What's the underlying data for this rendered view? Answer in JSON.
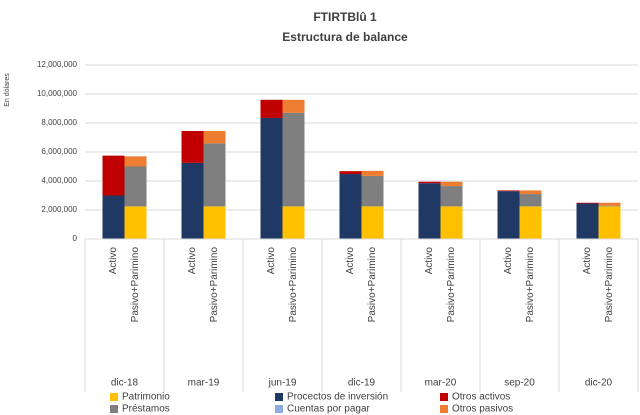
{
  "chart_data": {
    "type": "stacked-bar",
    "title": "FTIRTBlû 1",
    "subtitle": "Estructura de balance",
    "ylabel": "En dólares",
    "categories": [
      "Activo",
      "Pasivo+Parimino",
      "Activo",
      "Pasivo+Parimino",
      "Activo",
      "Pasivo+Parimino",
      "Activo",
      "Pasivo+Parimino",
      "Activo",
      "Pasivo+Parimino",
      "Activo",
      "Pasivo+Parimino",
      "Activo",
      "Pasivo+Parimino"
    ],
    "groups": [
      "dic-18",
      "mar-19",
      "jun-19",
      "dic-19",
      "mar-20",
      "sep-20",
      "dic-20"
    ],
    "series": [
      {
        "name": "Patrimonio",
        "color": "#ffc000",
        "values": [
          null,
          2250000,
          null,
          2250000,
          null,
          2250000,
          null,
          2250000,
          null,
          2250000,
          null,
          2250000,
          null,
          2250000
        ]
      },
      {
        "name": "Procectos de inversión",
        "color": "#203864",
        "values": [
          3000000,
          null,
          5250000,
          null,
          8350000,
          null,
          4480000,
          null,
          3850000,
          null,
          3300000,
          null,
          2450000,
          null
        ]
      },
      {
        "name": "Otros activos",
        "color": "#c00000",
        "values": [
          2750000,
          null,
          2200000,
          null,
          1250000,
          null,
          200000,
          null,
          100000,
          null,
          50000,
          null,
          50000,
          null
        ]
      },
      {
        "name": "Préstamos",
        "color": "#7f7f7f",
        "values": [
          null,
          2750000,
          null,
          4350000,
          null,
          6450000,
          null,
          2100000,
          null,
          1400000,
          null,
          850000,
          null,
          50000
        ]
      },
      {
        "name": "Cuentas por pagar",
        "color": "#8faadc",
        "values": [
          null,
          0,
          null,
          0,
          null,
          0,
          null,
          0,
          null,
          0,
          null,
          0,
          null,
          0
        ]
      },
      {
        "name": "Otros pasivos",
        "color": "#ed7d31",
        "values": [
          null,
          700000,
          null,
          850000,
          null,
          900000,
          null,
          350000,
          null,
          300000,
          null,
          250000,
          null,
          200000
        ]
      }
    ],
    "ylim": [
      0,
      12000000
    ],
    "yticks": [
      0,
      {
        "value": 2000000,
        "label": "2,000,000"
      },
      {
        "value": 4000000,
        "label": "4,000,000"
      },
      {
        "value": 6000000,
        "label": "6,000,000"
      },
      {
        "value": 8000000,
        "label": "8,000,000"
      },
      {
        "value": 10000000,
        "label": "10,000,000"
      },
      {
        "value": 12000000,
        "label": "12,000,000"
      }
    ],
    "grid": true
  }
}
